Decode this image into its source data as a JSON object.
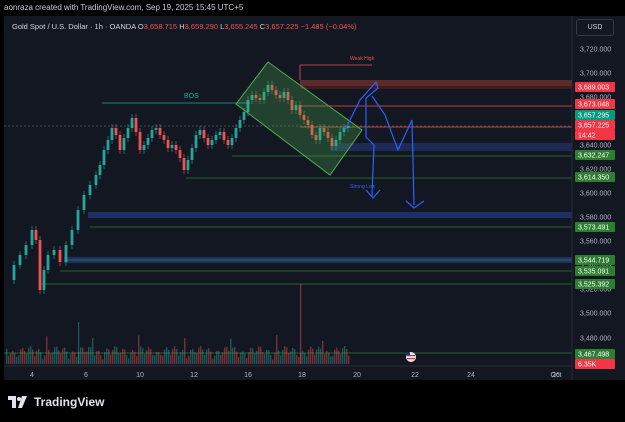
{
  "header": {
    "caption": "aonraza created with TradingView.com, Sep 19, 2025 15:45 UTC+5"
  },
  "legend": {
    "symbol": "Gold Spot / U.S. Dollar · 1h · OANDA",
    "open_label": "O",
    "open": "3,658.715",
    "high_label": "H",
    "high": "3,659.290",
    "low_label": "L",
    "low": "3,655.245",
    "close_label": "C",
    "close": "3,657.225",
    "change": "−1.485 (−0.04%)"
  },
  "currency": "USD",
  "price_axis": [
    "3,720.000",
    "3,700.000",
    "3,680.000",
    "3,660.000",
    "3,640.000",
    "3,620.000",
    "3,600.000",
    "3,580.000",
    "3,560.000",
    "3,540.000",
    "3,520.000",
    "3,500.000",
    "3,480.000",
    "3,460.000"
  ],
  "time_axis": [
    "4",
    "6",
    "10",
    "12",
    "16",
    "18",
    "20",
    "22",
    "24",
    "26",
    "Oct"
  ],
  "price_tags": [
    {
      "label": "3,689.003",
      "color": "#f23645"
    },
    {
      "label": "3,673.048",
      "color": "#f23645"
    },
    {
      "label": "3,657.295",
      "color": "#089981"
    },
    {
      "label": "3,657.225",
      "color": "#f23645"
    },
    {
      "label": "14:42",
      "color": "#f23645"
    },
    {
      "label": "3,632.247",
      "color": "#2e7d32"
    },
    {
      "label": "3,614.350",
      "color": "#2e7d32"
    },
    {
      "label": "3,573.491",
      "color": "#2e7d32"
    },
    {
      "label": "3,544.719",
      "color": "#2e7d32"
    },
    {
      "label": "3,535.091",
      "color": "#2e7d32"
    },
    {
      "label": "3,525.392",
      "color": "#2e7d32"
    },
    {
      "label": "3,467.498",
      "color": "#2e7d32"
    },
    {
      "label": "6.35K",
      "color": "#f23645"
    }
  ],
  "annotations": {
    "bos": "BOS",
    "weak_high": "Weak High",
    "strong_low": "Strong Low"
  },
  "brand": {
    "name": "TradingView"
  },
  "colors": {
    "bg": "#131722",
    "up": "#26a69a",
    "down": "#ef5350",
    "arrow": "#2962ff"
  }
}
